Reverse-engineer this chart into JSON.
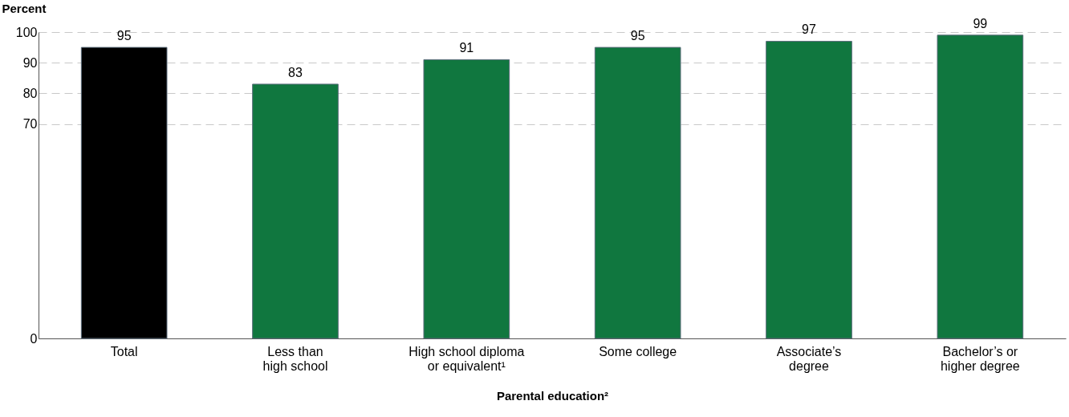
{
  "chart_data": {
    "type": "bar",
    "xlabel": "Parental education²",
    "ylabel": "Percent",
    "categories": [
      "Total",
      "Less than\nhigh school",
      "High school diploma\nor equivalent¹",
      "Some college",
      "Associate’s\ndegree",
      "Bachelor’s or\nhigher degree"
    ],
    "values": [
      95,
      83,
      91,
      95,
      97,
      99
    ],
    "colors": [
      "#000000",
      "#10773f",
      "#10773f",
      "#10773f",
      "#10773f",
      "#10773f"
    ],
    "ylim": [
      0,
      100
    ],
    "yticks": [
      0,
      70,
      80,
      90,
      100
    ],
    "grid": "y",
    "data_labels": true
  }
}
